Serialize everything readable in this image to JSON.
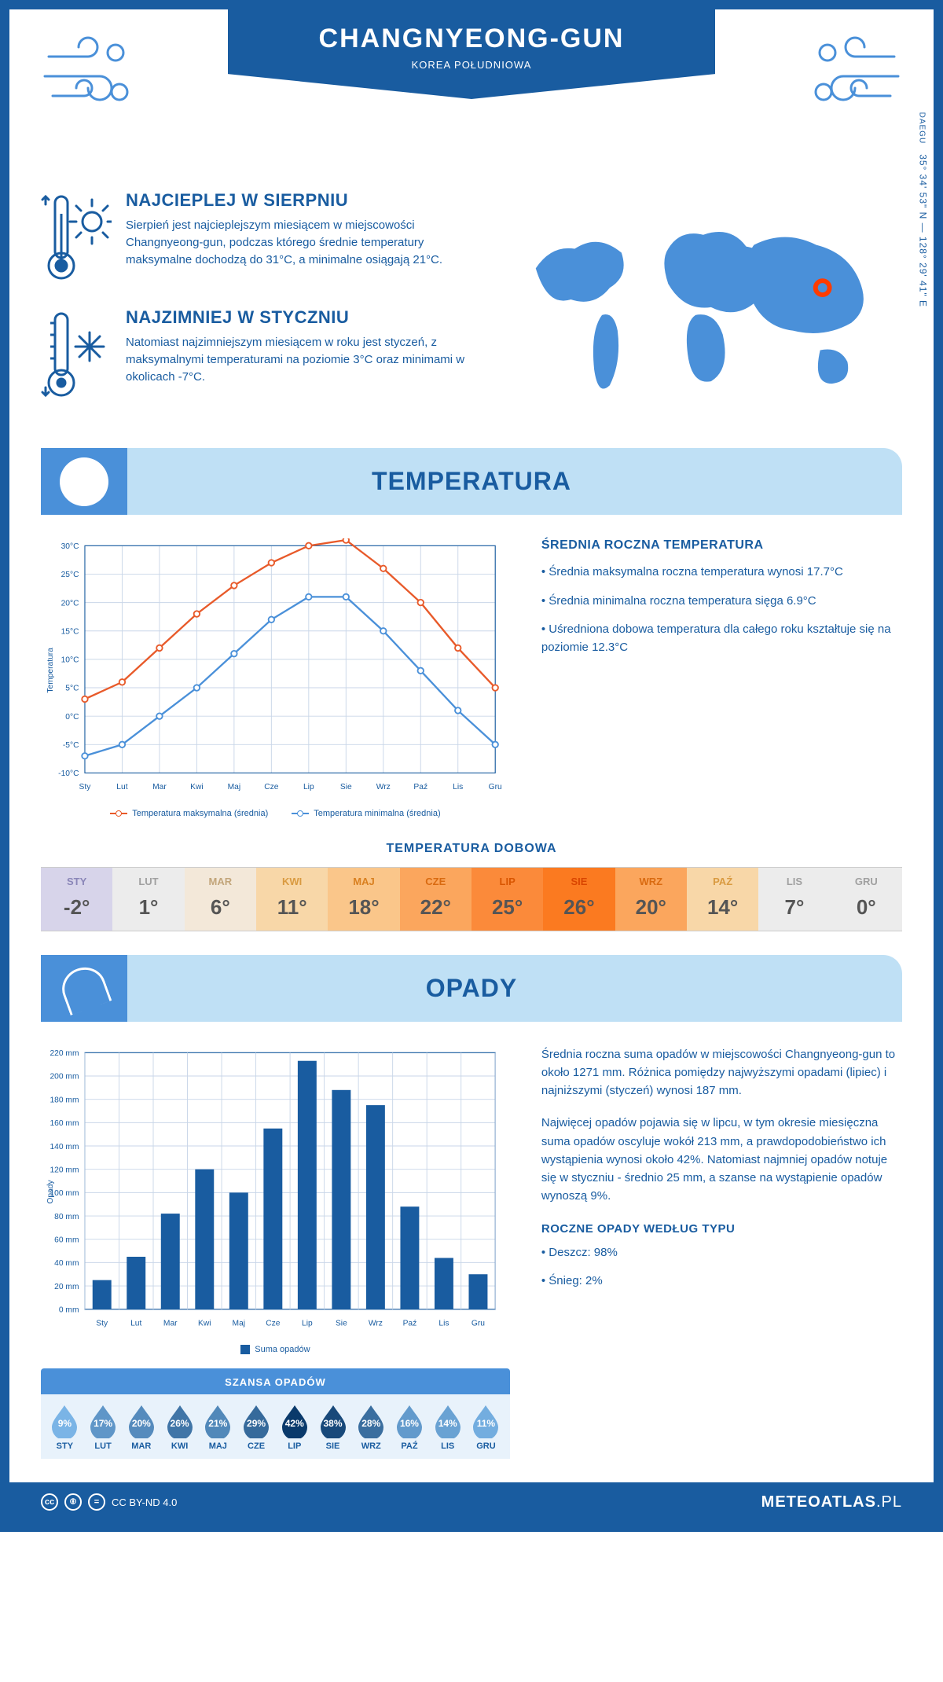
{
  "header": {
    "title": "CHANGNYEONG-GUN",
    "subtitle": "KOREA POŁUDNIOWA",
    "region_near": "DAEGU",
    "coords": "35° 34' 53\" N — 128° 29' 41\" E"
  },
  "colors": {
    "primary": "#195ca0",
    "light_blue": "#bfe0f5",
    "mid_blue": "#4a90d9",
    "line_max": "#e85a2a",
    "line_min": "#4a90d9",
    "grid": "#c9d6e8",
    "marker_red": "#ff3c00"
  },
  "intro": {
    "warm": {
      "title": "NAJCIEPLEJ W SIERPNIU",
      "text": "Sierpień jest najcieplejszym miesiącem w miejscowości Changnyeong-gun, podczas którego średnie temperatury maksymalne dochodzą do 31°C, a minimalne osiągają 21°C."
    },
    "cold": {
      "title": "NAJZIMNIEJ W STYCZNIU",
      "text": "Natomiast najzimniejszym miesiącem w roku jest styczeń, z maksymalnymi temperaturami na poziomie 3°C oraz minimami w okolicach -7°C."
    }
  },
  "sections": {
    "temperature_title": "TEMPERATURA",
    "precip_title": "OPADY"
  },
  "temp_chart": {
    "type": "line",
    "months": [
      "Sty",
      "Lut",
      "Mar",
      "Kwi",
      "Maj",
      "Cze",
      "Lip",
      "Sie",
      "Wrz",
      "Paź",
      "Lis",
      "Gru"
    ],
    "ylabel": "Temperatura",
    "ylim": [
      -10,
      30
    ],
    "ytick_step": 5,
    "y_suffix": "°C",
    "series_max": {
      "label": "Temperatura maksymalna (średnia)",
      "color": "#e85a2a",
      "values": [
        3,
        6,
        12,
        18,
        23,
        27,
        30,
        31,
        26,
        20,
        12,
        5
      ]
    },
    "series_min": {
      "label": "Temperatura minimalna (średnia)",
      "color": "#4a90d9",
      "values": [
        -7,
        -5,
        0,
        5,
        11,
        17,
        21,
        21,
        15,
        8,
        1,
        -5
      ]
    }
  },
  "temp_facts": {
    "title": "ŚREDNIA ROCZNA TEMPERATURA",
    "items": [
      "Średnia maksymalna roczna temperatura wynosi 17.7°C",
      "Średnia minimalna roczna temperatura sięga 6.9°C",
      "Uśredniona dobowa temperatura dla całego roku kształtuje się na poziomie 12.3°C"
    ]
  },
  "daily": {
    "title": "TEMPERATURA DOBOWA",
    "months": [
      "STY",
      "LUT",
      "MAR",
      "KWI",
      "MAJ",
      "CZE",
      "LIP",
      "SIE",
      "WRZ",
      "PAŹ",
      "LIS",
      "GRU"
    ],
    "values": [
      "-2°",
      "1°",
      "6°",
      "11°",
      "18°",
      "22°",
      "25°",
      "26°",
      "20°",
      "14°",
      "7°",
      "0°"
    ],
    "bg_colors": [
      "#d7d4ea",
      "#ececec",
      "#f3e8d9",
      "#f8d7a8",
      "#fac68a",
      "#fba65d",
      "#fb8a3a",
      "#fb7a20",
      "#fba65d",
      "#f8d7a8",
      "#ececec",
      "#ececec"
    ],
    "label_colors": [
      "#8a86b8",
      "#a0a0a0",
      "#c2a57a",
      "#d99a40",
      "#d98020",
      "#d96a10",
      "#d95500",
      "#d94500",
      "#d96a10",
      "#d99a40",
      "#a0a0a0",
      "#a0a0a0"
    ]
  },
  "precip_chart": {
    "type": "bar",
    "months": [
      "Sty",
      "Lut",
      "Mar",
      "Kwi",
      "Maj",
      "Cze",
      "Lip",
      "Sie",
      "Wrz",
      "Paź",
      "Lis",
      "Gru"
    ],
    "ylabel": "Opady",
    "ylim": [
      0,
      220
    ],
    "ytick_step": 20,
    "y_suffix": " mm",
    "bar_color": "#195ca0",
    "legend": "Suma opadów",
    "values": [
      25,
      45,
      82,
      120,
      100,
      155,
      213,
      188,
      175,
      88,
      44,
      30
    ]
  },
  "precip_text": {
    "p1": "Średnia roczna suma opadów w miejscowości Changnyeong-gun to około 1271 mm. Różnica pomiędzy najwyższymi opadami (lipiec) i najniższymi (styczeń) wynosi 187 mm.",
    "p2": "Najwięcej opadów pojawia się w lipcu, w tym okresie miesięczna suma opadów oscyluje wokół 213 mm, a prawdopodobieństwo ich wystąpienia wynosi około 42%. Natomiast najmniej opadów notuje się w styczniu - średnio 25 mm, a szanse na wystąpienie opadów wynoszą 9%.",
    "by_type_title": "ROCZNE OPADY WEDŁUG TYPU",
    "by_type": [
      "Deszcz: 98%",
      "Śnieg: 2%"
    ]
  },
  "chance": {
    "title": "SZANSA OPADÓW",
    "months": [
      "STY",
      "LUT",
      "MAR",
      "KWI",
      "MAJ",
      "CZE",
      "LIP",
      "SIE",
      "WRZ",
      "PAŹ",
      "LIS",
      "GRU"
    ],
    "values": [
      "9%",
      "17%",
      "20%",
      "26%",
      "21%",
      "29%",
      "42%",
      "38%",
      "28%",
      "16%",
      "14%",
      "11%"
    ],
    "shade_min": 9,
    "shade_max": 42,
    "color_light": "#7ab4e6",
    "color_dark": "#0a3a6b"
  },
  "footer": {
    "license": "CC BY-ND 4.0",
    "brand": "METEOATLAS",
    "tld": ".PL"
  }
}
